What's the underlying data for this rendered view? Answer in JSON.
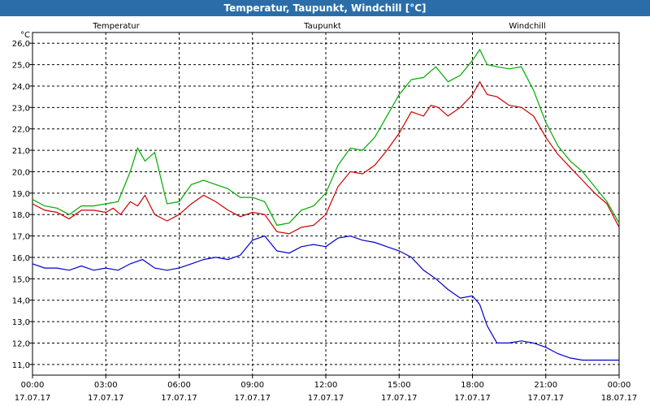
{
  "window": {
    "title": "Temperatur, Taupunkt, Windchill [°C]"
  },
  "chart_data": {
    "type": "line",
    "title": "Temperatur, Taupunkt, Windchill [°C]",
    "ylabel": "°C",
    "ylim": [
      10.5,
      26.5
    ],
    "yticks": [
      11.0,
      12.0,
      13.0,
      14.0,
      15.0,
      16.0,
      17.0,
      18.0,
      19.0,
      20.0,
      21.0,
      22.0,
      23.0,
      24.0,
      25.0,
      26.0
    ],
    "yticklabels": [
      "11,0",
      "12,0",
      "13,0",
      "14,0",
      "15,0",
      "16,0",
      "17,0",
      "18,0",
      "19,0",
      "20,0",
      "21,0",
      "22,0",
      "23,0",
      "24,0",
      "25,0",
      "26,0"
    ],
    "xlim": [
      0,
      24
    ],
    "xticks": [
      {
        "hour": 0,
        "time": "00:00",
        "date": "17.07.17"
      },
      {
        "hour": 3,
        "time": "03:00",
        "date": "17.07.17"
      },
      {
        "hour": 6,
        "time": "06:00",
        "date": "17.07.17"
      },
      {
        "hour": 9,
        "time": "09:00",
        "date": "17.07.17"
      },
      {
        "hour": 12,
        "time": "12:00",
        "date": "17.07.17"
      },
      {
        "hour": 15,
        "time": "15:00",
        "date": "17.07.17"
      },
      {
        "hour": 18,
        "time": "18:00",
        "date": "17.07.17"
      },
      {
        "hour": 21,
        "time": "21:00",
        "date": "17.07.17"
      },
      {
        "hour": 24,
        "time": "00:00",
        "date": "18.07.17"
      }
    ],
    "grid": true,
    "legend_position": "top",
    "series": [
      {
        "name": "Temperatur",
        "color": "#cc0000",
        "points": [
          [
            0,
            18.5
          ],
          [
            0.5,
            18.2
          ],
          [
            1,
            18.1
          ],
          [
            1.5,
            17.8
          ],
          [
            2,
            18.2
          ],
          [
            2.5,
            18.2
          ],
          [
            3,
            18.1
          ],
          [
            3.3,
            18.3
          ],
          [
            3.6,
            18.0
          ],
          [
            4,
            18.6
          ],
          [
            4.3,
            18.4
          ],
          [
            4.6,
            18.9
          ],
          [
            5,
            18.0
          ],
          [
            5.5,
            17.7
          ],
          [
            6,
            18.0
          ],
          [
            6.5,
            18.5
          ],
          [
            7,
            18.9
          ],
          [
            7.5,
            18.6
          ],
          [
            8,
            18.2
          ],
          [
            8.5,
            17.9
          ],
          [
            9,
            18.1
          ],
          [
            9.5,
            18.0
          ],
          [
            10,
            17.2
          ],
          [
            10.5,
            17.1
          ],
          [
            11,
            17.4
          ],
          [
            11.5,
            17.5
          ],
          [
            12,
            18.0
          ],
          [
            12.5,
            19.3
          ],
          [
            13,
            20.0
          ],
          [
            13.5,
            19.9
          ],
          [
            14,
            20.3
          ],
          [
            14.5,
            21.0
          ],
          [
            15,
            21.8
          ],
          [
            15.5,
            22.8
          ],
          [
            16,
            22.6
          ],
          [
            16.3,
            23.1
          ],
          [
            16.6,
            23.0
          ],
          [
            17,
            22.6
          ],
          [
            17.5,
            23.0
          ],
          [
            18,
            23.6
          ],
          [
            18.3,
            24.2
          ],
          [
            18.6,
            23.6
          ],
          [
            19,
            23.5
          ],
          [
            19.5,
            23.1
          ],
          [
            20,
            23.0
          ],
          [
            20.5,
            22.6
          ],
          [
            21,
            21.6
          ],
          [
            21.5,
            20.8
          ],
          [
            22,
            20.2
          ],
          [
            22.5,
            19.6
          ],
          [
            23,
            19.0
          ],
          [
            23.5,
            18.5
          ],
          [
            24,
            17.4
          ]
        ]
      },
      {
        "name": "Taupunkt",
        "color": "#0000cc",
        "points": [
          [
            0,
            15.7
          ],
          [
            0.5,
            15.5
          ],
          [
            1,
            15.5
          ],
          [
            1.5,
            15.4
          ],
          [
            2,
            15.6
          ],
          [
            2.5,
            15.4
          ],
          [
            3,
            15.5
          ],
          [
            3.5,
            15.4
          ],
          [
            4,
            15.7
          ],
          [
            4.5,
            15.9
          ],
          [
            5,
            15.5
          ],
          [
            5.5,
            15.4
          ],
          [
            6,
            15.5
          ],
          [
            6.5,
            15.7
          ],
          [
            7,
            15.9
          ],
          [
            7.5,
            16.0
          ],
          [
            8,
            15.9
          ],
          [
            8.5,
            16.1
          ],
          [
            9,
            16.8
          ],
          [
            9.5,
            17.0
          ],
          [
            10,
            16.3
          ],
          [
            10.5,
            16.2
          ],
          [
            11,
            16.5
          ],
          [
            11.5,
            16.6
          ],
          [
            12,
            16.5
          ],
          [
            12.5,
            16.9
          ],
          [
            13,
            17.0
          ],
          [
            13.5,
            16.8
          ],
          [
            14,
            16.7
          ],
          [
            14.5,
            16.5
          ],
          [
            15,
            16.3
          ],
          [
            15.5,
            16.0
          ],
          [
            16,
            15.4
          ],
          [
            16.5,
            15.0
          ],
          [
            17,
            14.5
          ],
          [
            17.5,
            14.1
          ],
          [
            18,
            14.2
          ],
          [
            18.3,
            13.8
          ],
          [
            18.6,
            12.8
          ],
          [
            19,
            12.0
          ],
          [
            19.5,
            12.0
          ],
          [
            20,
            12.1
          ],
          [
            20.5,
            12.0
          ],
          [
            21,
            11.8
          ],
          [
            21.5,
            11.5
          ],
          [
            22,
            11.3
          ],
          [
            22.5,
            11.2
          ],
          [
            23,
            11.2
          ],
          [
            23.5,
            11.2
          ],
          [
            24,
            11.2
          ]
        ]
      },
      {
        "name": "Windchill",
        "color": "#00aa00",
        "points": [
          [
            0,
            18.7
          ],
          [
            0.5,
            18.4
          ],
          [
            1,
            18.3
          ],
          [
            1.5,
            18.0
          ],
          [
            2,
            18.4
          ],
          [
            2.5,
            18.4
          ],
          [
            3,
            18.5
          ],
          [
            3.5,
            18.6
          ],
          [
            4,
            20.0
          ],
          [
            4.3,
            21.1
          ],
          [
            4.6,
            20.5
          ],
          [
            5,
            20.9
          ],
          [
            5.5,
            18.5
          ],
          [
            6,
            18.6
          ],
          [
            6.5,
            19.4
          ],
          [
            7,
            19.6
          ],
          [
            7.5,
            19.4
          ],
          [
            8,
            19.2
          ],
          [
            8.5,
            18.8
          ],
          [
            9,
            18.8
          ],
          [
            9.5,
            18.6
          ],
          [
            10,
            17.5
          ],
          [
            10.5,
            17.6
          ],
          [
            11,
            18.2
          ],
          [
            11.5,
            18.4
          ],
          [
            12,
            19.0
          ],
          [
            12.5,
            20.3
          ],
          [
            13,
            21.1
          ],
          [
            13.5,
            21.0
          ],
          [
            14,
            21.6
          ],
          [
            14.5,
            22.6
          ],
          [
            15,
            23.6
          ],
          [
            15.5,
            24.3
          ],
          [
            16,
            24.4
          ],
          [
            16.5,
            24.9
          ],
          [
            17,
            24.2
          ],
          [
            17.5,
            24.5
          ],
          [
            18,
            25.2
          ],
          [
            18.3,
            25.7
          ],
          [
            18.6,
            25.0
          ],
          [
            19,
            24.9
          ],
          [
            19.5,
            24.8
          ],
          [
            20,
            24.9
          ],
          [
            20.5,
            23.8
          ],
          [
            21,
            22.3
          ],
          [
            21.5,
            21.2
          ],
          [
            22,
            20.5
          ],
          [
            22.5,
            20.0
          ],
          [
            23,
            19.3
          ],
          [
            23.5,
            18.6
          ],
          [
            24,
            17.6
          ]
        ]
      }
    ]
  }
}
